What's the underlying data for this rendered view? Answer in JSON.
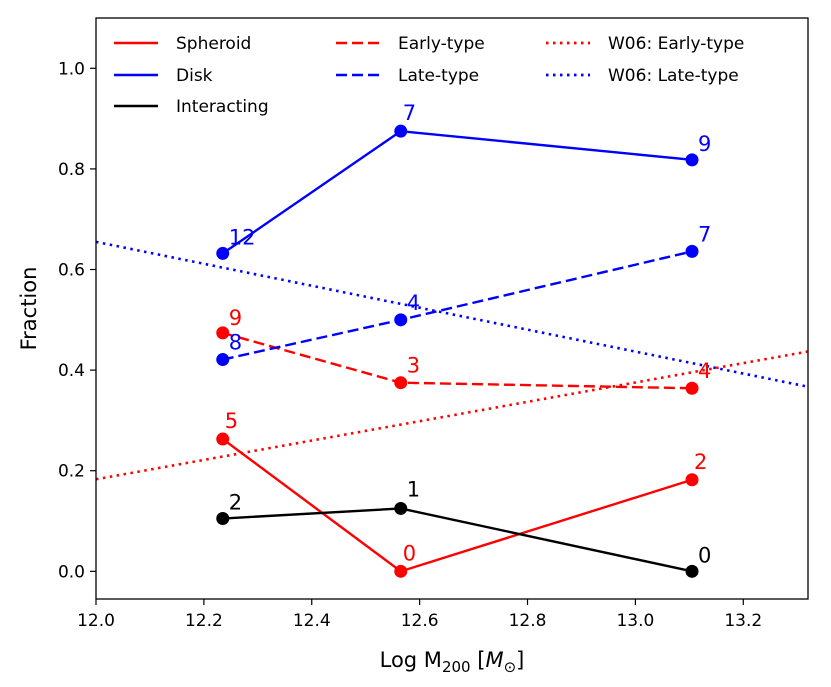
{
  "chart_data": {
    "type": "line",
    "title": "",
    "xlabel": "Log M200 [M⊙]",
    "xlabel_parts": {
      "base": "Log M",
      "sub": "200",
      "unit_open": " [",
      "unit_var": "M",
      "unit_sub": "⊙",
      "unit_close": "]"
    },
    "ylabel": "Fraction",
    "xlim": [
      12.0,
      13.32
    ],
    "ylim": [
      -0.055,
      1.1
    ],
    "xticks": [
      12.0,
      12.2,
      12.4,
      12.6,
      12.8,
      13.0,
      13.2
    ],
    "xtick_labels": [
      "12.0",
      "12.2",
      "12.4",
      "12.6",
      "12.8",
      "13.0",
      "13.2"
    ],
    "yticks": [
      0.0,
      0.2,
      0.4,
      0.6,
      0.8,
      1.0
    ],
    "ytick_labels": [
      "0.0",
      "0.2",
      "0.4",
      "0.6",
      "0.8",
      "1.0"
    ],
    "grid": false,
    "legend_position": "top",
    "series": [
      {
        "name": "Spheroid",
        "color": "#ff0000",
        "style": "solid",
        "markers": true,
        "x": [
          12.235,
          12.565,
          13.105
        ],
        "y": [
          0.263,
          0.0,
          0.182
        ],
        "labels": [
          "5",
          "0",
          "2"
        ]
      },
      {
        "name": "Disk",
        "color": "#0000ff",
        "style": "solid",
        "markers": true,
        "x": [
          12.235,
          12.565,
          13.105
        ],
        "y": [
          0.632,
          0.875,
          0.818
        ],
        "labels": [
          "12",
          "7",
          "9"
        ]
      },
      {
        "name": "Interacting",
        "color": "#000000",
        "style": "solid",
        "markers": true,
        "x": [
          12.235,
          12.565,
          13.105
        ],
        "y": [
          0.105,
          0.125,
          0.0
        ],
        "labels": [
          "2",
          "1",
          "0"
        ]
      },
      {
        "name": "Early-type",
        "color": "#ff0000",
        "style": "dashed",
        "markers": true,
        "x": [
          12.235,
          12.565,
          13.105
        ],
        "y": [
          0.474,
          0.375,
          0.364
        ],
        "labels": [
          "9",
          "3",
          "4"
        ]
      },
      {
        "name": "Late-type",
        "color": "#0000ff",
        "style": "dashed",
        "markers": true,
        "x": [
          12.235,
          12.565,
          13.105
        ],
        "y": [
          0.421,
          0.5,
          0.636
        ],
        "labels": [
          "8",
          "4",
          "7"
        ]
      },
      {
        "name": "W06: Early-type",
        "color": "#ff0000",
        "style": "dotted",
        "markers": false,
        "x": [
          12.0,
          13.32
        ],
        "y": [
          0.183,
          0.437
        ],
        "labels": []
      },
      {
        "name": "W06: Late-type",
        "color": "#0000ff",
        "style": "dotted",
        "markers": false,
        "x": [
          12.0,
          13.32
        ],
        "y": [
          0.655,
          0.367
        ],
        "labels": []
      }
    ]
  }
}
